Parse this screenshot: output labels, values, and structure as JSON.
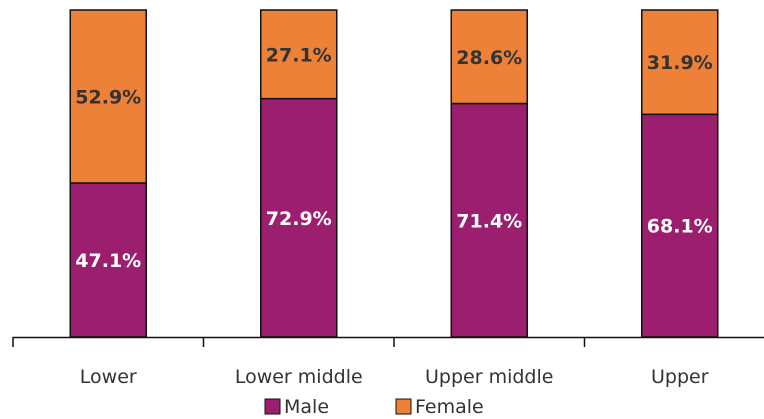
{
  "chart_data": {
    "type": "bar",
    "stacked": true,
    "normalized": true,
    "categories": [
      "Lower",
      "Lower middle",
      "Upper middle",
      "Upper"
    ],
    "series": [
      {
        "name": "Male",
        "color": "#9b1f6e",
        "values": [
          47.1,
          72.9,
          71.4,
          68.1
        ],
        "labels": [
          "47.1%",
          "72.9%",
          "71.4%",
          "68.1%"
        ],
        "label_color": "#ffffff"
      },
      {
        "name": "Female",
        "color": "#ec8137",
        "values": [
          52.9,
          27.1,
          28.6,
          31.9
        ],
        "labels": [
          "52.9%",
          "27.1%",
          "28.6%",
          "31.9%"
        ],
        "label_color": "#333333"
      }
    ],
    "ylim": [
      0,
      100
    ],
    "grid": false,
    "legend": "bottom-center"
  }
}
